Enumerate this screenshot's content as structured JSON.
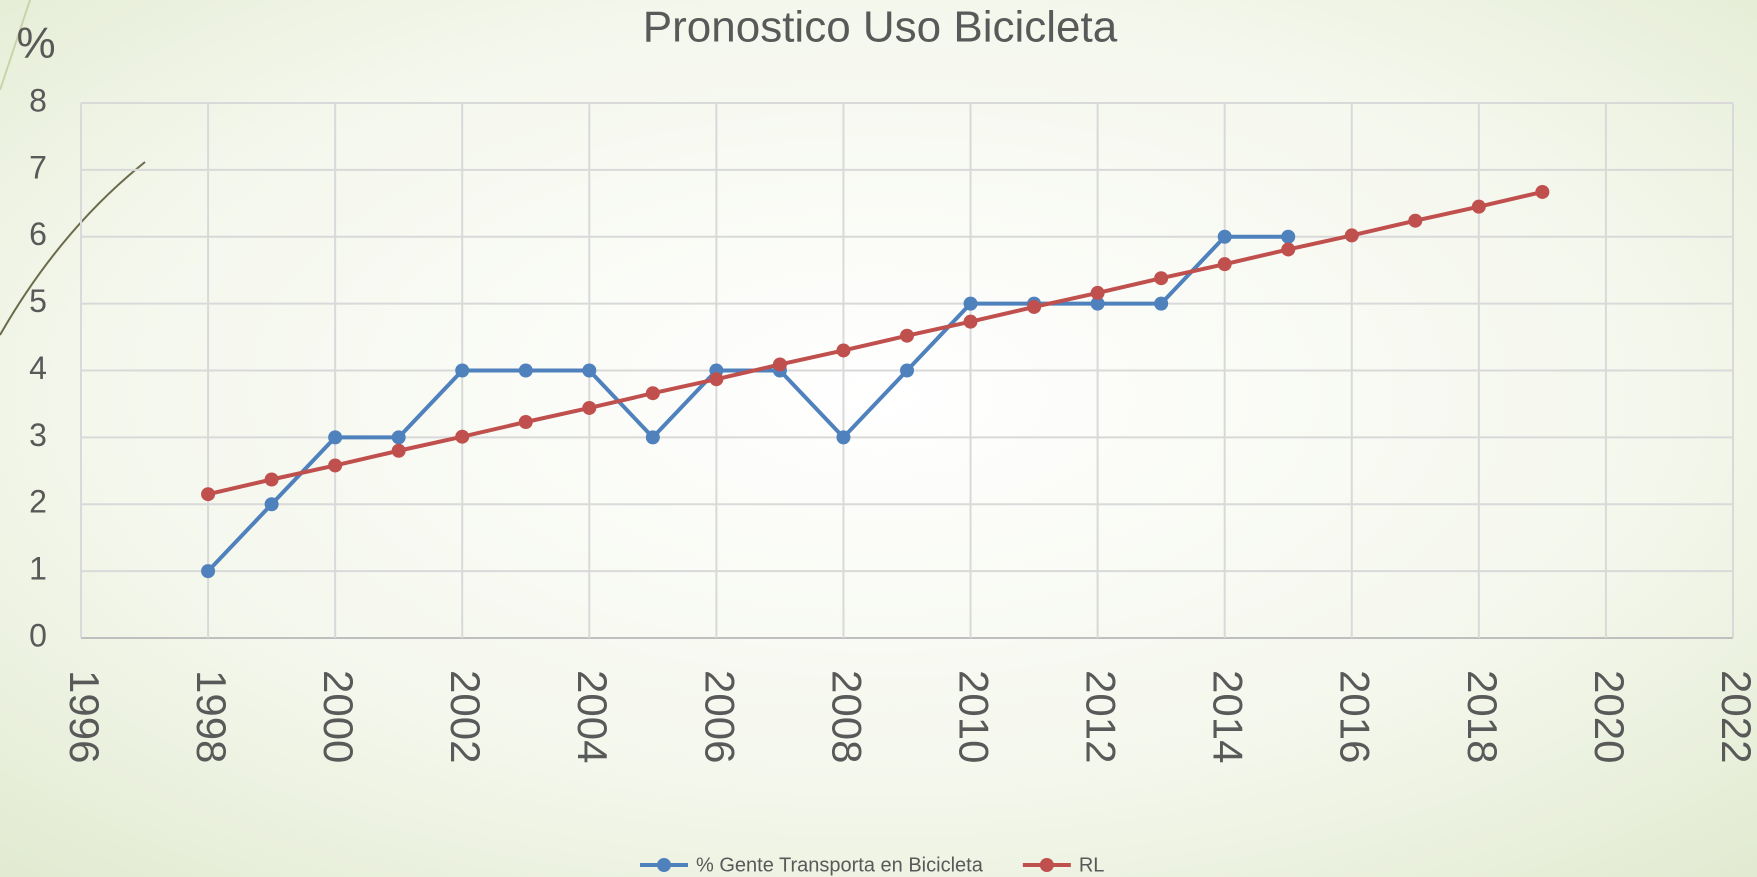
{
  "chart_data": {
    "type": "line",
    "title": "Pronostico Uso Bicicleta",
    "y_label": "%",
    "xlim": [
      1996,
      2022
    ],
    "xticks": [
      1996,
      1998,
      2000,
      2002,
      2004,
      2006,
      2008,
      2010,
      2012,
      2014,
      2016,
      2018,
      2020,
      2022
    ],
    "ylim": [
      0,
      8
    ],
    "yticks": [
      0,
      1,
      2,
      3,
      4,
      5,
      6,
      7,
      8
    ],
    "grid": true,
    "legend": "bottom",
    "series": [
      {
        "name": "% Gente Transporta en Bicicleta",
        "color": "#4f81bd",
        "x": [
          1998,
          1999,
          2000,
          2001,
          2002,
          2003,
          2004,
          2005,
          2006,
          2007,
          2008,
          2009,
          2010,
          2011,
          2012,
          2013,
          2014,
          2015
        ],
        "values": [
          1,
          2,
          3,
          3,
          4,
          4,
          4,
          3,
          4,
          4,
          3,
          4,
          5,
          5,
          5,
          5,
          6,
          6
        ]
      },
      {
        "name": "RL",
        "color": "#c0504d",
        "x": [
          1998,
          1999,
          2000,
          2001,
          2002,
          2003,
          2004,
          2005,
          2006,
          2007,
          2008,
          2009,
          2010,
          2011,
          2012,
          2013,
          2014,
          2015,
          2016,
          2017,
          2018,
          2019
        ],
        "values": [
          2.15,
          2.37,
          2.58,
          2.8,
          3.01,
          3.23,
          3.44,
          3.66,
          3.87,
          4.09,
          4.3,
          4.52,
          4.73,
          4.95,
          5.16,
          5.38,
          5.59,
          5.81,
          6.02,
          6.24,
          6.45,
          6.67
        ]
      }
    ]
  }
}
